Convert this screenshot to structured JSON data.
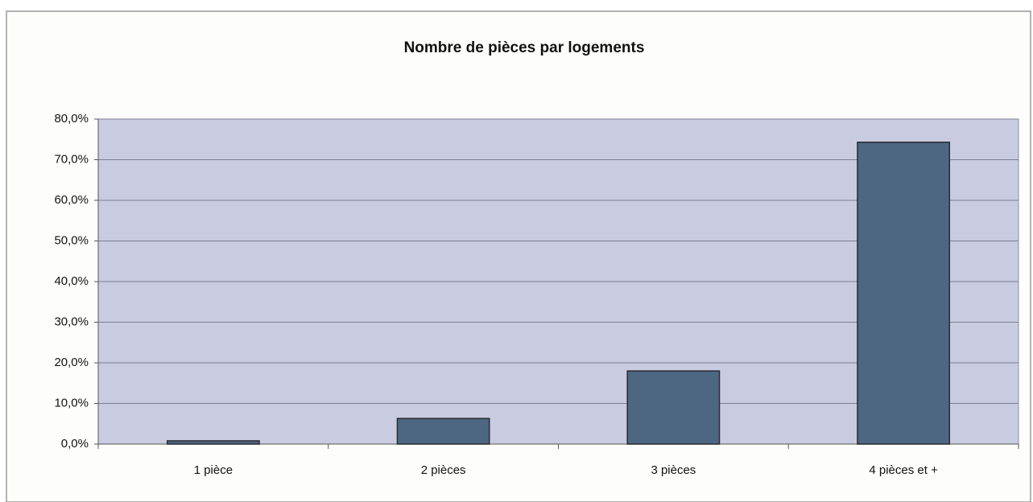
{
  "chart_data": {
    "type": "bar",
    "title": "Nombre de pièces par logements",
    "categories": [
      "1 pièce",
      "2 pièces",
      "3 pièces",
      "4 pièces et +"
    ],
    "values": [
      0.8,
      6.3,
      18.0,
      74.3
    ],
    "color": "#4d6782",
    "ylim": [
      0,
      80
    ],
    "yticks": [
      {
        "value": 0,
        "label": "0,0%"
      },
      {
        "value": 10,
        "label": "10,0%"
      },
      {
        "value": 20,
        "label": "20,0%"
      },
      {
        "value": 30,
        "label": "30,0%"
      },
      {
        "value": 40,
        "label": "40,0%"
      },
      {
        "value": 50,
        "label": "50,0%"
      },
      {
        "value": 60,
        "label": "60,0%"
      },
      {
        "value": 70,
        "label": "70,0%"
      },
      {
        "value": 80,
        "label": "80,0%"
      }
    ],
    "grid": true
  }
}
